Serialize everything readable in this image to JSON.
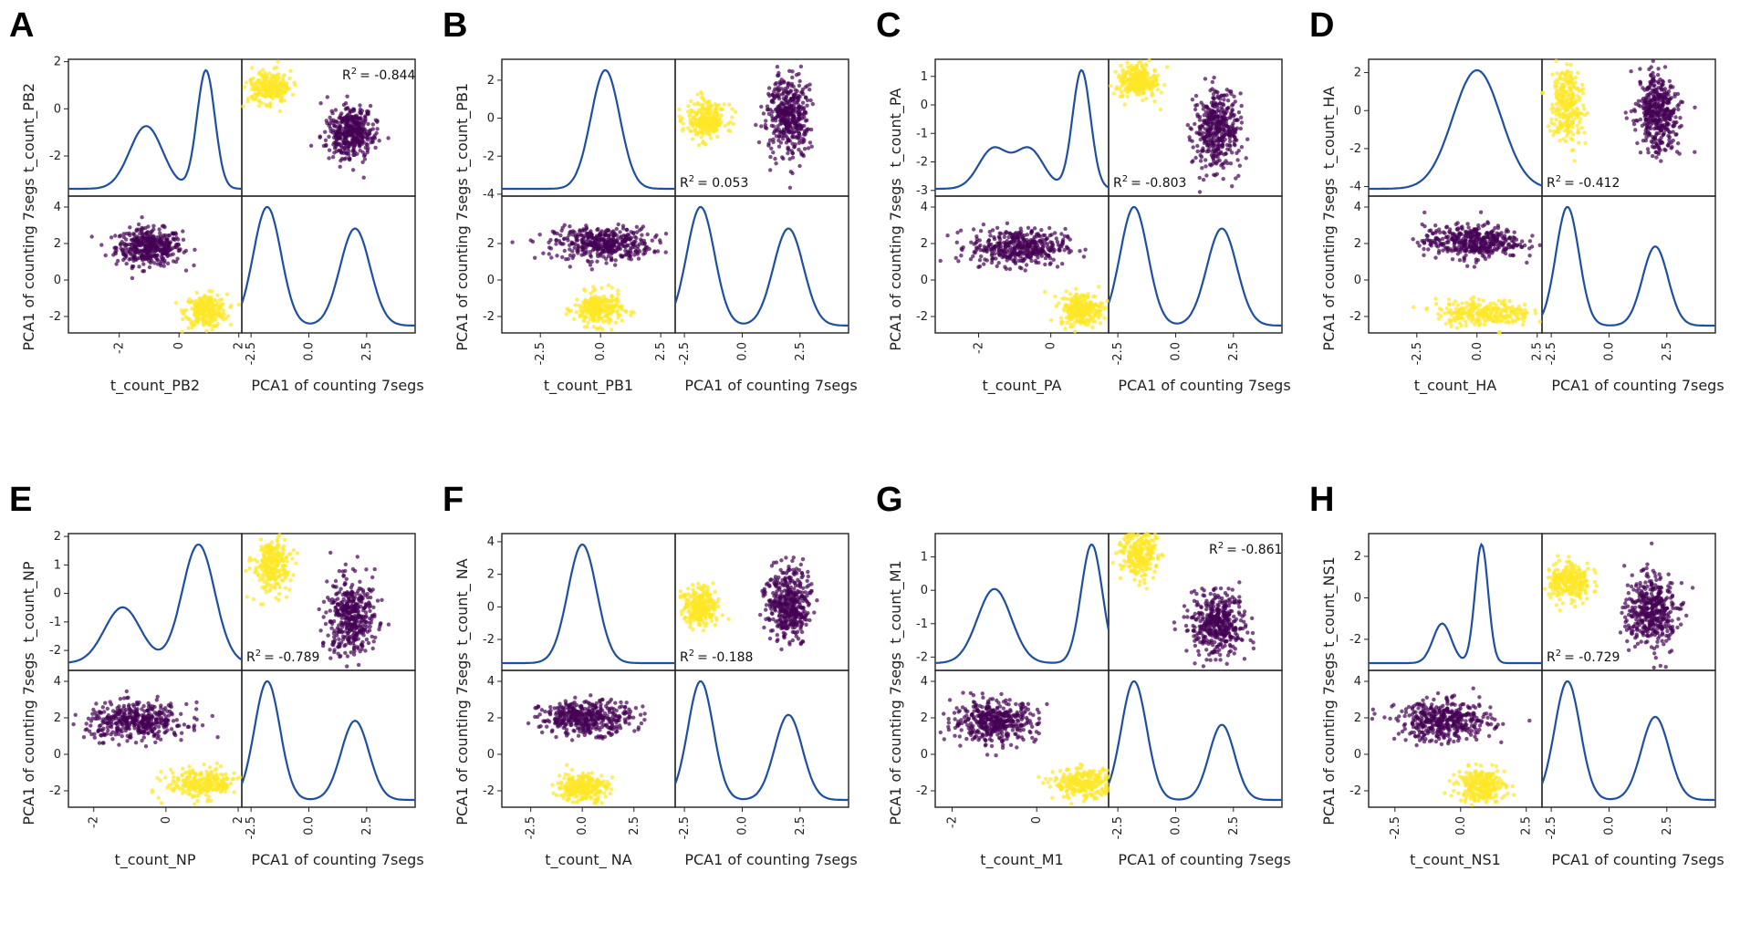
{
  "figure": {
    "colors": {
      "group_a": "#fde725",
      "group_b": "#440154",
      "kde_line": "#1f4fa0",
      "axes": "#222222"
    },
    "r2_prefix": "R",
    "r2_sup": "2",
    "shared_label": "PCA1 of counting 7segs"
  },
  "chart_data": [
    {
      "type": "scatter",
      "panel": "A",
      "segment_label": "t_count_PB2",
      "ylabel_top": "t_count_PB2",
      "ylabel_bottom": "PCA1 of counting 7segs",
      "xlabel_left": "t_count_PB2",
      "xlabel_right": "PCA1 of counting 7segs",
      "r2": "= -0.844",
      "r2_position": "top-right",
      "seg_range": [
        -3.7,
        2.1
      ],
      "seg_ticks": [
        "-2",
        "0",
        "2"
      ],
      "seg_tick_values": [
        -2,
        0,
        2
      ],
      "pca_range": [
        -2.9,
        4.6
      ],
      "pca_ticks": [
        "-2.5",
        "0.0",
        "2.5"
      ],
      "pca_tick_values": [
        -2.5,
        0,
        2.5
      ],
      "pca_y_ticks": [
        "-2",
        "0",
        "2",
        "4"
      ],
      "pca_y_tick_values": [
        -2,
        0,
        2,
        4
      ],
      "seg_y_ticks": [
        "-2",
        "0",
        "2"
      ],
      "seg_y_tick_values": [
        -2,
        0,
        2
      ],
      "seg_grid": false,
      "clusters": [
        {
          "group": "purple",
          "seg": -1.0,
          "seg_sd": 0.55,
          "pca": 1.8,
          "pca_sd": 0.5,
          "n": 420
        },
        {
          "group": "yellow",
          "seg": 0.9,
          "seg_sd": 0.35,
          "pca": -1.7,
          "pca_sd": 0.45,
          "n": 260
        }
      ],
      "seg_kde": [
        [
          -1.1,
          0.55,
          0.45
        ],
        [
          0.9,
          0.3,
          0.85
        ]
      ],
      "pca_kde": [
        [
          -1.8,
          0.6,
          0.55
        ],
        [
          2.0,
          0.65,
          0.45
        ]
      ]
    },
    {
      "type": "scatter",
      "panel": "B",
      "segment_label": "t_count_PB1",
      "ylabel_top": "t_count_PB1",
      "ylabel_bottom": "PCA1 of counting 7segs",
      "xlabel_left": "t_count_PB1",
      "xlabel_right": "PCA1 of counting 7segs",
      "r2": "= 0.053",
      "r2_position": "bottom-left",
      "seg_range": [
        -4.1,
        3.1
      ],
      "seg_ticks": [
        "-2.5",
        "0.0",
        "2.5"
      ],
      "seg_tick_values": [
        -2.5,
        0,
        2.5
      ],
      "seg_y_ticks": [
        "-4",
        "-2",
        "0",
        "2"
      ],
      "seg_y_tick_values": [
        -4,
        -2,
        0,
        2
      ],
      "pca_range": [
        -2.9,
        4.6
      ],
      "pca_ticks": [
        "-2.5",
        "0.0",
        "2.5"
      ],
      "pca_tick_values": [
        -2.5,
        0,
        2.5
      ],
      "pca_y_ticks": [
        "-2",
        "0",
        "2"
      ],
      "pca_y_tick_values": [
        -2,
        0,
        2
      ],
      "clusters": [
        {
          "group": "purple",
          "seg": 0.1,
          "seg_sd": 1.0,
          "pca": 2.0,
          "pca_sd": 0.45,
          "n": 420
        },
        {
          "group": "yellow",
          "seg": -0.1,
          "seg_sd": 0.5,
          "pca": -1.6,
          "pca_sd": 0.45,
          "n": 260
        }
      ],
      "seg_kde": [
        [
          0.2,
          0.6,
          1.0
        ]
      ],
      "pca_kde": [
        [
          -1.8,
          0.6,
          0.55
        ],
        [
          2.0,
          0.65,
          0.45
        ]
      ]
    },
    {
      "type": "scatter",
      "panel": "C",
      "segment_label": "t_count_PA",
      "ylabel_top": "t_count_PA",
      "ylabel_bottom": "PCA1 of counting 7segs",
      "xlabel_left": "t_count_PA",
      "xlabel_right": "PCA1 of counting 7segs",
      "r2": "= -0.803",
      "r2_position": "bottom-left",
      "seg_range": [
        -3.2,
        1.6
      ],
      "seg_ticks": [
        "-2",
        "0"
      ],
      "seg_tick_values": [
        -2,
        0
      ],
      "seg_y_ticks": [
        "-3",
        "-2",
        "-1",
        "0",
        "1"
      ],
      "seg_y_tick_values": [
        -3,
        -2,
        -1,
        0,
        1
      ],
      "pca_range": [
        -2.9,
        4.6
      ],
      "pca_ticks": [
        "-2.5",
        "0.0",
        "2.5"
      ],
      "pca_tick_values": [
        -2.5,
        0,
        2.5
      ],
      "pca_y_ticks": [
        "-2",
        "0",
        "2",
        "4"
      ],
      "pca_y_tick_values": [
        -2,
        0,
        2,
        4
      ],
      "clusters": [
        {
          "group": "purple",
          "seg": -0.9,
          "seg_sd": 0.65,
          "pca": 1.8,
          "pca_sd": 0.5,
          "n": 420
        },
        {
          "group": "yellow",
          "seg": 0.85,
          "seg_sd": 0.3,
          "pca": -1.6,
          "pca_sd": 0.45,
          "n": 260
        }
      ],
      "seg_kde": [
        [
          -1.6,
          0.4,
          0.3
        ],
        [
          -0.6,
          0.4,
          0.3
        ],
        [
          0.85,
          0.25,
          0.9
        ]
      ],
      "pca_kde": [
        [
          -1.8,
          0.6,
          0.55
        ],
        [
          2.0,
          0.65,
          0.45
        ]
      ]
    },
    {
      "type": "scatter",
      "panel": "D",
      "segment_label": "t_count_HA",
      "ylabel_top": "t_count_HA",
      "ylabel_bottom": "PCA1 of counting 7segs",
      "xlabel_left": "t_count_HA",
      "xlabel_right": "PCA1 of counting 7segs",
      "r2": "= -0.412",
      "r2_position": "bottom-left",
      "seg_range": [
        -4.5,
        2.7
      ],
      "seg_ticks": [
        "-2.5",
        "0.0",
        "2.5"
      ],
      "seg_tick_values": [
        -2.5,
        0,
        2.5
      ],
      "seg_y_ticks": [
        "-4",
        "-2",
        "0",
        "2"
      ],
      "seg_y_tick_values": [
        -4,
        -2,
        0,
        2
      ],
      "pca_range": [
        -2.9,
        4.6
      ],
      "pca_ticks": [
        "-2.5",
        "0.0",
        "2.5"
      ],
      "pca_tick_values": [
        -2.5,
        0,
        2.5
      ],
      "pca_y_ticks": [
        "-2",
        "0",
        "2",
        "4"
      ],
      "pca_y_tick_values": [
        -2,
        0,
        2,
        4
      ],
      "clusters": [
        {
          "group": "purple",
          "seg": -0.2,
          "seg_sd": 1.0,
          "pca": 2.1,
          "pca_sd": 0.45,
          "n": 420
        },
        {
          "group": "yellow",
          "seg": 0.3,
          "seg_sd": 1.0,
          "pca": -1.8,
          "pca_sd": 0.35,
          "n": 260
        }
      ],
      "seg_kde": [
        [
          0.0,
          1.0,
          1.0
        ]
      ],
      "pca_kde": [
        [
          -1.8,
          0.5,
          0.6
        ],
        [
          2.0,
          0.55,
          0.4
        ]
      ]
    },
    {
      "type": "scatter",
      "panel": "E",
      "segment_label": "t_count_NP",
      "ylabel_top": "t_count_NP",
      "ylabel_bottom": "PCA1 of counting 7segs",
      "xlabel_left": "t_count_NP",
      "xlabel_right": "PCA1 of counting 7segs",
      "r2": "= -0.789",
      "r2_position": "bottom-left",
      "seg_range": [
        -2.7,
        2.1
      ],
      "seg_ticks": [
        "-2",
        "0",
        "2"
      ],
      "seg_tick_values": [
        -2,
        0,
        2
      ],
      "seg_y_ticks": [
        "-2",
        "-1",
        "0",
        "1",
        "2"
      ],
      "seg_y_tick_values": [
        -2,
        -1,
        0,
        1,
        2
      ],
      "pca_range": [
        -2.9,
        4.6
      ],
      "pca_ticks": [
        "-2.5",
        "0.0",
        "2.5"
      ],
      "pca_tick_values": [
        -2.5,
        0,
        2.5
      ],
      "pca_y_ticks": [
        "-2",
        "0",
        "2",
        "4"
      ],
      "pca_y_tick_values": [
        -2,
        0,
        2,
        4
      ],
      "clusters": [
        {
          "group": "purple",
          "seg": -0.8,
          "seg_sd": 0.7,
          "pca": 1.8,
          "pca_sd": 0.5,
          "n": 420
        },
        {
          "group": "yellow",
          "seg": 1.0,
          "seg_sd": 0.5,
          "pca": -1.6,
          "pca_sd": 0.4,
          "n": 260
        }
      ],
      "seg_kde": [
        [
          -1.2,
          0.5,
          0.4
        ],
        [
          0.9,
          0.45,
          0.85
        ]
      ],
      "pca_kde": [
        [
          -1.8,
          0.55,
          0.6
        ],
        [
          2.0,
          0.6,
          0.4
        ]
      ]
    },
    {
      "type": "scatter",
      "panel": "F",
      "segment_label": "t_count_ NA",
      "ylabel_top": "t_count_ NA",
      "ylabel_bottom": "PCA1 of counting 7segs",
      "xlabel_left": "t_count_ NA",
      "xlabel_right": "PCA1 of counting 7segs",
      "r2": "= -0.188",
      "r2_position": "bottom-left",
      "seg_range": [
        -3.9,
        4.5
      ],
      "seg_ticks": [
        "-2.5",
        "0.0",
        "2.5"
      ],
      "seg_tick_values": [
        -2.5,
        0,
        2.5
      ],
      "seg_y_ticks": [
        "-2",
        "0",
        "2",
        "4"
      ],
      "seg_y_tick_values": [
        -2,
        0,
        2,
        4
      ],
      "pca_range": [
        -2.9,
        4.6
      ],
      "pca_ticks": [
        "-2.5",
        "0.0",
        "2.5"
      ],
      "pca_tick_values": [
        -2.5,
        0,
        2.5
      ],
      "pca_y_ticks": [
        "-2",
        "0",
        "2",
        "4"
      ],
      "pca_y_tick_values": [
        -2,
        0,
        2,
        4
      ],
      "clusters": [
        {
          "group": "purple",
          "seg": 0.2,
          "seg_sd": 1.1,
          "pca": 2.0,
          "pca_sd": 0.45,
          "n": 420
        },
        {
          "group": "yellow",
          "seg": 0.0,
          "seg_sd": 0.6,
          "pca": -1.8,
          "pca_sd": 0.4,
          "n": 260
        }
      ],
      "seg_kde": [
        [
          0.0,
          0.7,
          1.0
        ]
      ],
      "pca_kde": [
        [
          -1.8,
          0.55,
          0.6
        ],
        [
          2.0,
          0.6,
          0.43
        ]
      ]
    },
    {
      "type": "scatter",
      "panel": "G",
      "segment_label": "t_count_M1",
      "ylabel_top": "t_count_M1",
      "ylabel_bottom": "PCA1 of counting 7segs",
      "xlabel_left": "t_count_M1",
      "xlabel_right": "PCA1 of counting 7segs",
      "r2": "= -0.861",
      "r2_position": "top-right",
      "seg_range": [
        -2.4,
        1.7
      ],
      "seg_ticks": [
        "-2",
        "0"
      ],
      "seg_tick_values": [
        -2,
        0
      ],
      "seg_y_ticks": [
        "-2",
        "-1",
        "0",
        "1"
      ],
      "seg_y_tick_values": [
        -2,
        -1,
        0,
        1
      ],
      "pca_range": [
        -2.9,
        4.6
      ],
      "pca_ticks": [
        "-2.5",
        "0.0",
        "2.5"
      ],
      "pca_tick_values": [
        -2.5,
        0,
        2.5
      ],
      "pca_y_ticks": [
        "-2",
        "0",
        "2",
        "4"
      ],
      "pca_y_tick_values": [
        -2,
        0,
        2,
        4
      ],
      "clusters": [
        {
          "group": "purple",
          "seg": -1.0,
          "seg_sd": 0.5,
          "pca": 1.8,
          "pca_sd": 0.55,
          "n": 420
        },
        {
          "group": "yellow",
          "seg": 1.1,
          "seg_sd": 0.35,
          "pca": -1.6,
          "pca_sd": 0.4,
          "n": 260
        }
      ],
      "seg_kde": [
        [
          -1.0,
          0.4,
          0.5
        ],
        [
          1.3,
          0.25,
          0.8
        ]
      ],
      "pca_kde": [
        [
          -1.8,
          0.55,
          0.6
        ],
        [
          2.0,
          0.55,
          0.38
        ]
      ]
    },
    {
      "type": "scatter",
      "panel": "H",
      "segment_label": "t_count_NS1",
      "ylabel_top": "t_count_NS1",
      "ylabel_bottom": "PCA1 of counting 7segs",
      "xlabel_left": "t_count_NS1",
      "xlabel_right": "PCA1 of counting 7segs",
      "r2": "= -0.729",
      "r2_position": "bottom-left",
      "seg_range": [
        -3.5,
        3.1
      ],
      "seg_ticks": [
        "-2.5",
        "0.0",
        "2.5"
      ],
      "seg_tick_values": [
        -2.5,
        0,
        2.5
      ],
      "seg_y_ticks": [
        "-2",
        "0",
        "2"
      ],
      "seg_y_tick_values": [
        -2,
        0,
        2
      ],
      "pca_range": [
        -2.9,
        4.6
      ],
      "pca_ticks": [
        "-2.5",
        "0.0",
        "2.5"
      ],
      "pca_tick_values": [
        -2.5,
        0,
        2.5
      ],
      "pca_y_ticks": [
        "-2",
        "0",
        "2",
        "4"
      ],
      "pca_y_tick_values": [
        -2,
        0,
        2,
        4
      ],
      "clusters": [
        {
          "group": "purple",
          "seg": -0.6,
          "seg_sd": 0.9,
          "pca": 1.8,
          "pca_sd": 0.55,
          "n": 420
        },
        {
          "group": "yellow",
          "seg": 0.8,
          "seg_sd": 0.45,
          "pca": -1.7,
          "pca_sd": 0.45,
          "n": 260
        }
      ],
      "seg_kde": [
        [
          -0.7,
          0.35,
          0.3
        ],
        [
          0.8,
          0.25,
          0.9
        ]
      ],
      "pca_kde": [
        [
          -1.8,
          0.55,
          0.6
        ],
        [
          2.0,
          0.6,
          0.42
        ]
      ]
    }
  ]
}
